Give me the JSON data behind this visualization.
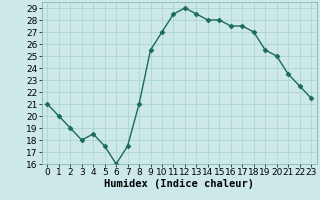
{
  "x": [
    0,
    1,
    2,
    3,
    4,
    5,
    6,
    7,
    8,
    9,
    10,
    11,
    12,
    13,
    14,
    15,
    16,
    17,
    18,
    19,
    20,
    21,
    22,
    23
  ],
  "y": [
    21,
    20,
    19,
    18,
    18.5,
    17.5,
    16,
    17.5,
    21,
    25.5,
    27,
    28.5,
    29,
    28.5,
    28,
    28,
    27.5,
    27.5,
    27,
    25.5,
    25,
    23.5,
    22.5,
    21.5
  ],
  "line_color": "#1a6b5a",
  "marker": "D",
  "marker_size": 2.5,
  "bg_color": "#cde8e8",
  "grid_color": "#b0d8d8",
  "xlabel": "Humidex (Indice chaleur)",
  "ylim": [
    16,
    29.5
  ],
  "yticks": [
    16,
    17,
    18,
    19,
    20,
    21,
    22,
    23,
    24,
    25,
    26,
    27,
    28,
    29
  ],
  "xlim": [
    -0.5,
    23.5
  ],
  "xticks": [
    0,
    1,
    2,
    3,
    4,
    5,
    6,
    7,
    8,
    9,
    10,
    11,
    12,
    13,
    14,
    15,
    16,
    17,
    18,
    19,
    20,
    21,
    22,
    23
  ],
  "xlabel_fontsize": 7.5,
  "tick_fontsize": 6.5,
  "linewidth": 1.0
}
